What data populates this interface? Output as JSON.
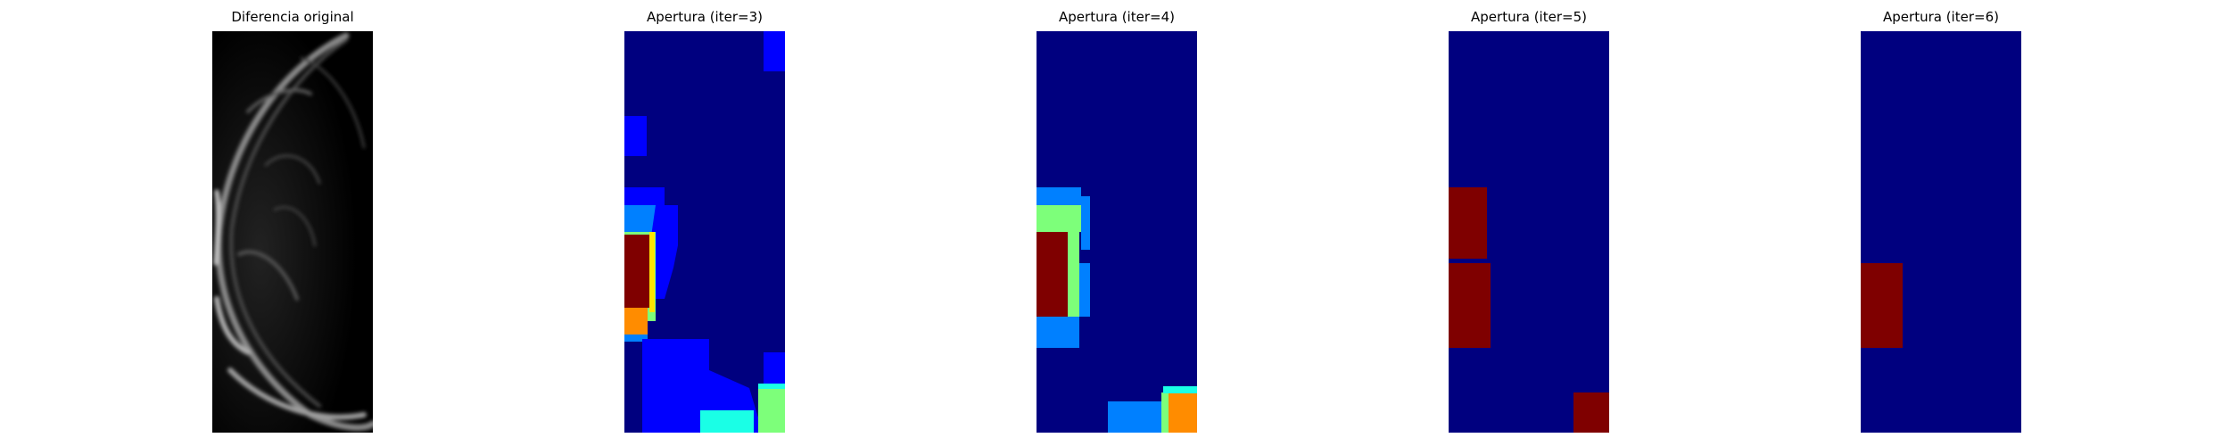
{
  "colors": {
    "navy": "#00007f",
    "blue": "#0000ff",
    "azure": "#0080ff",
    "cyan": "#1affe6",
    "mint": "#7dff7a",
    "yellow": "#ffe600",
    "orange": "#ff8c00",
    "maroon": "#7f0000",
    "black": "#000000"
  },
  "panels": [
    {
      "title": "Diferencia original"
    },
    {
      "title": "Apertura (iter=3)"
    },
    {
      "title": "Apertura (iter=4)"
    },
    {
      "title": "Apertura (iter=5)"
    },
    {
      "title": "Apertura (iter=6)"
    }
  ]
}
